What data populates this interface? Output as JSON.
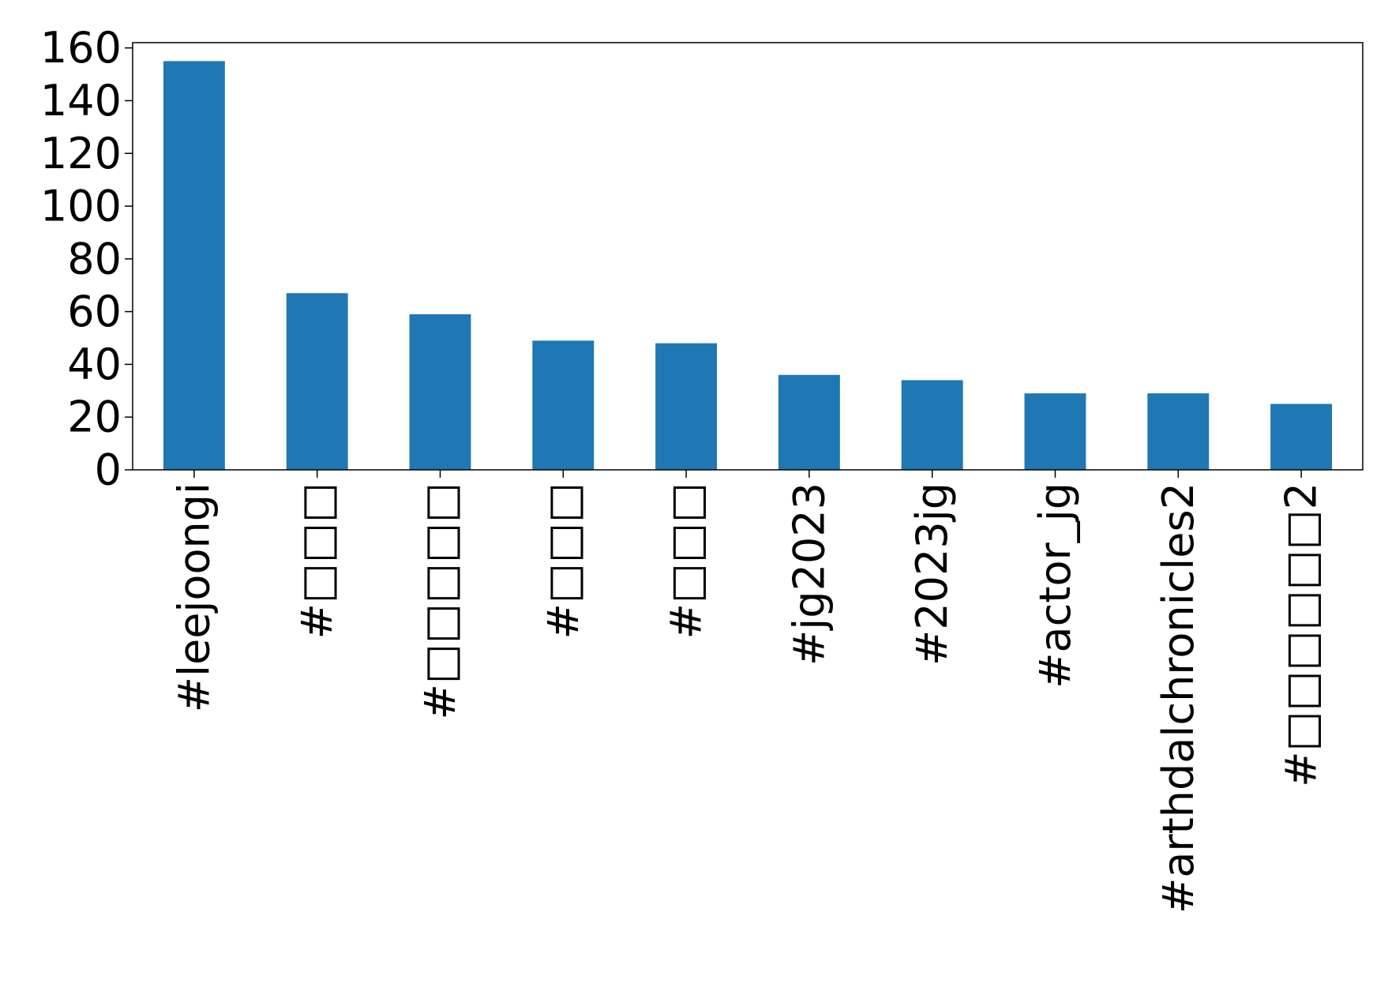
{
  "chart_data": {
    "type": "bar",
    "title": "",
    "xlabel": "",
    "ylabel": "",
    "categories": [
      "#leejoongi",
      "#□□□",
      "#□□□□□",
      "#□□□",
      "#□□□",
      "#jg2023",
      "#2023jg",
      "#actor_jg",
      "#arthdalchronicles2",
      "#□□□□□□2"
    ],
    "values": [
      155,
      67,
      59,
      49,
      48,
      36,
      34,
      29,
      29,
      25
    ],
    "ylim": [
      0,
      162
    ],
    "yticks": [
      0,
      20,
      40,
      60,
      80,
      100,
      120,
      140,
      160
    ],
    "grid": false,
    "legend": "none",
    "bar_color": "#1f77b4"
  }
}
